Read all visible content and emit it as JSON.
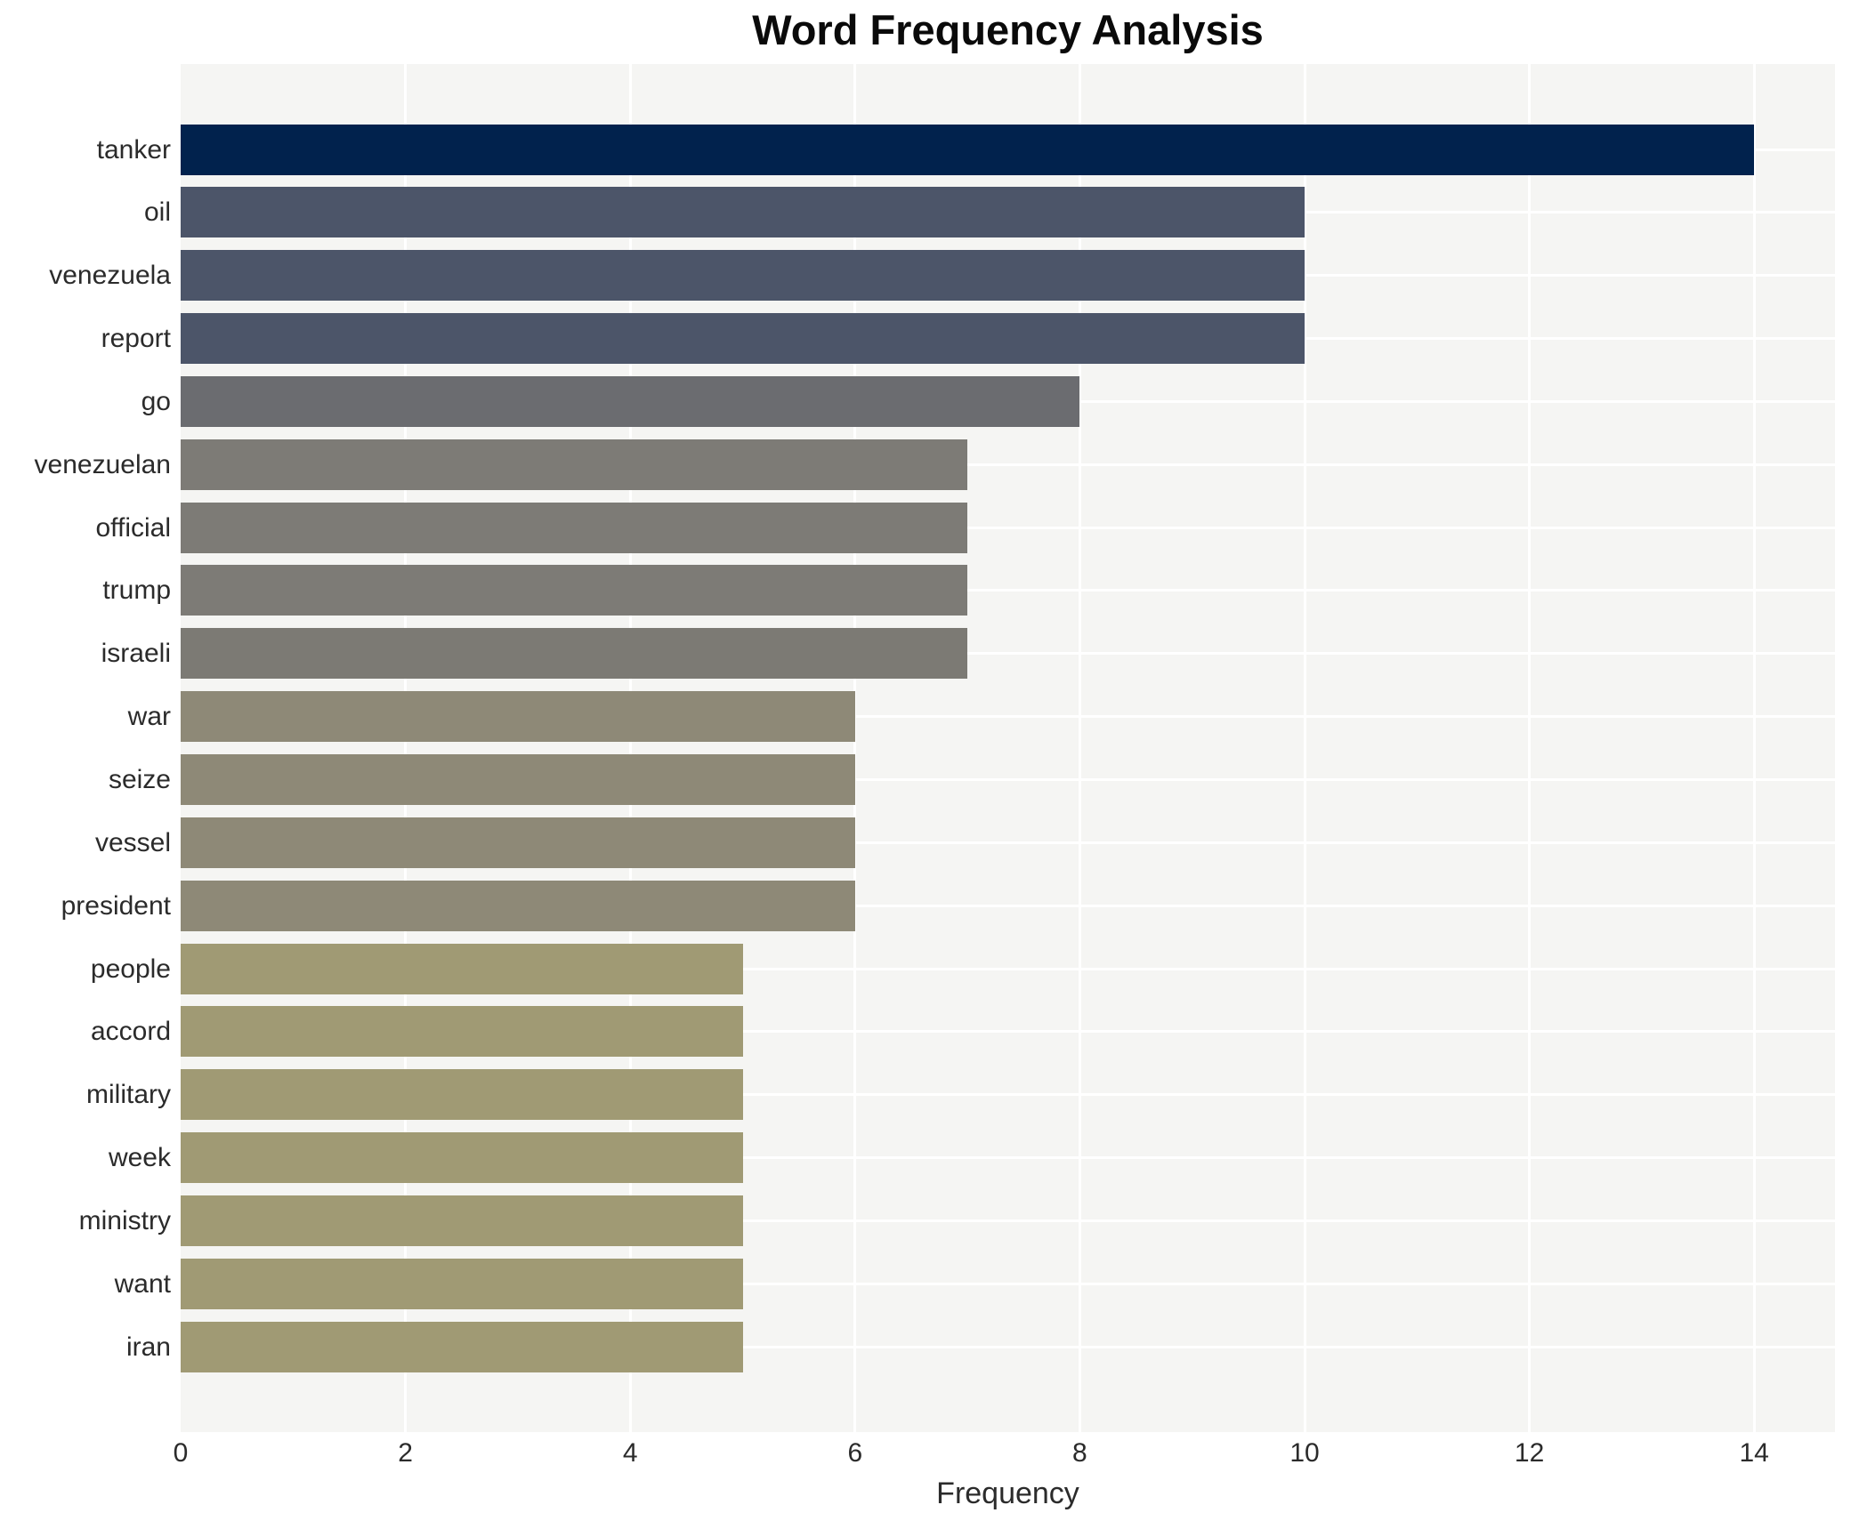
{
  "chart_data": {
    "type": "bar",
    "orientation": "horizontal",
    "title": "Word Frequency Analysis",
    "xlabel": "Frequency",
    "ylabel": "",
    "categories": [
      "tanker",
      "oil",
      "venezuela",
      "report",
      "go",
      "venezuelan",
      "official",
      "trump",
      "israeli",
      "war",
      "seize",
      "vessel",
      "president",
      "people",
      "accord",
      "military",
      "week",
      "ministry",
      "want",
      "iran"
    ],
    "values": [
      14,
      10,
      10,
      10,
      8,
      7,
      7,
      7,
      7,
      6,
      6,
      6,
      6,
      5,
      5,
      5,
      5,
      5,
      5,
      5
    ],
    "bar_colors": [
      "#01224d",
      "#4c5569",
      "#4c5569",
      "#4c5569",
      "#6b6c70",
      "#7d7b76",
      "#7d7b76",
      "#7d7b76",
      "#7c7a74",
      "#8e8977",
      "#8e8977",
      "#8e8977",
      "#8e8977",
      "#a09a74",
      "#a09a74",
      "#a09a74",
      "#a09a74",
      "#a09a74",
      "#a09a74",
      "#a09a74"
    ],
    "xlim": [
      0,
      14.72
    ],
    "xticks": [
      0,
      2,
      4,
      6,
      8,
      10,
      12,
      14
    ],
    "grid": true,
    "legend": "none",
    "plot_bg": "#f5f5f3",
    "grid_color": "#ffffff",
    "text_color": "#2b2b2b",
    "title_color": "#0a0a0a"
  }
}
